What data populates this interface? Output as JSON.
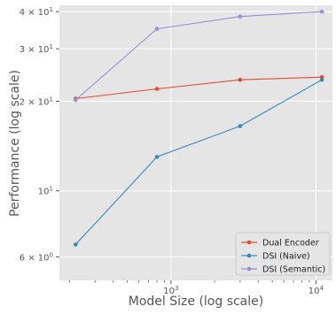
{
  "chart_data": {
    "type": "line",
    "xlabel": "Model Size (log scale)",
    "ylabel": "Performance (log scale)",
    "xscale": "log",
    "yscale": "log",
    "xlim": [
      170,
      13000
    ],
    "ylim": [
      5.0,
      42.0
    ],
    "grid": true,
    "legend_position": "bottom-right",
    "background": "#e5e5e5",
    "x_ticks": [
      {
        "value": 1000,
        "label": "10",
        "exp": "3"
      },
      {
        "value": 10000,
        "label": "10",
        "exp": "4"
      }
    ],
    "y_ticks": [
      {
        "value": 6,
        "label": "6 × 10",
        "exp": "0"
      },
      {
        "value": 10,
        "label": "10",
        "exp": "1"
      },
      {
        "value": 20,
        "label": "2 × 10",
        "exp": "1"
      },
      {
        "value": 30,
        "label": "3 × 10",
        "exp": "1"
      },
      {
        "value": 40,
        "label": "4 × 10",
        "exp": "1"
      }
    ],
    "x": [
      220,
      800,
      3000,
      11000
    ],
    "series": [
      {
        "name": "Dual Encoder",
        "color": "#e24a33",
        "marker": "circle",
        "values": [
          20.4,
          22.0,
          23.6,
          24.1
        ]
      },
      {
        "name": "DSI (Naive)",
        "color": "#348abd",
        "marker": "circle",
        "values": [
          6.6,
          13.0,
          16.5,
          23.6
        ]
      },
      {
        "name": "DSI (Semantic)",
        "color": "#988ed5",
        "marker": "circle",
        "values": [
          20.2,
          35.0,
          38.5,
          40.0
        ]
      }
    ]
  }
}
